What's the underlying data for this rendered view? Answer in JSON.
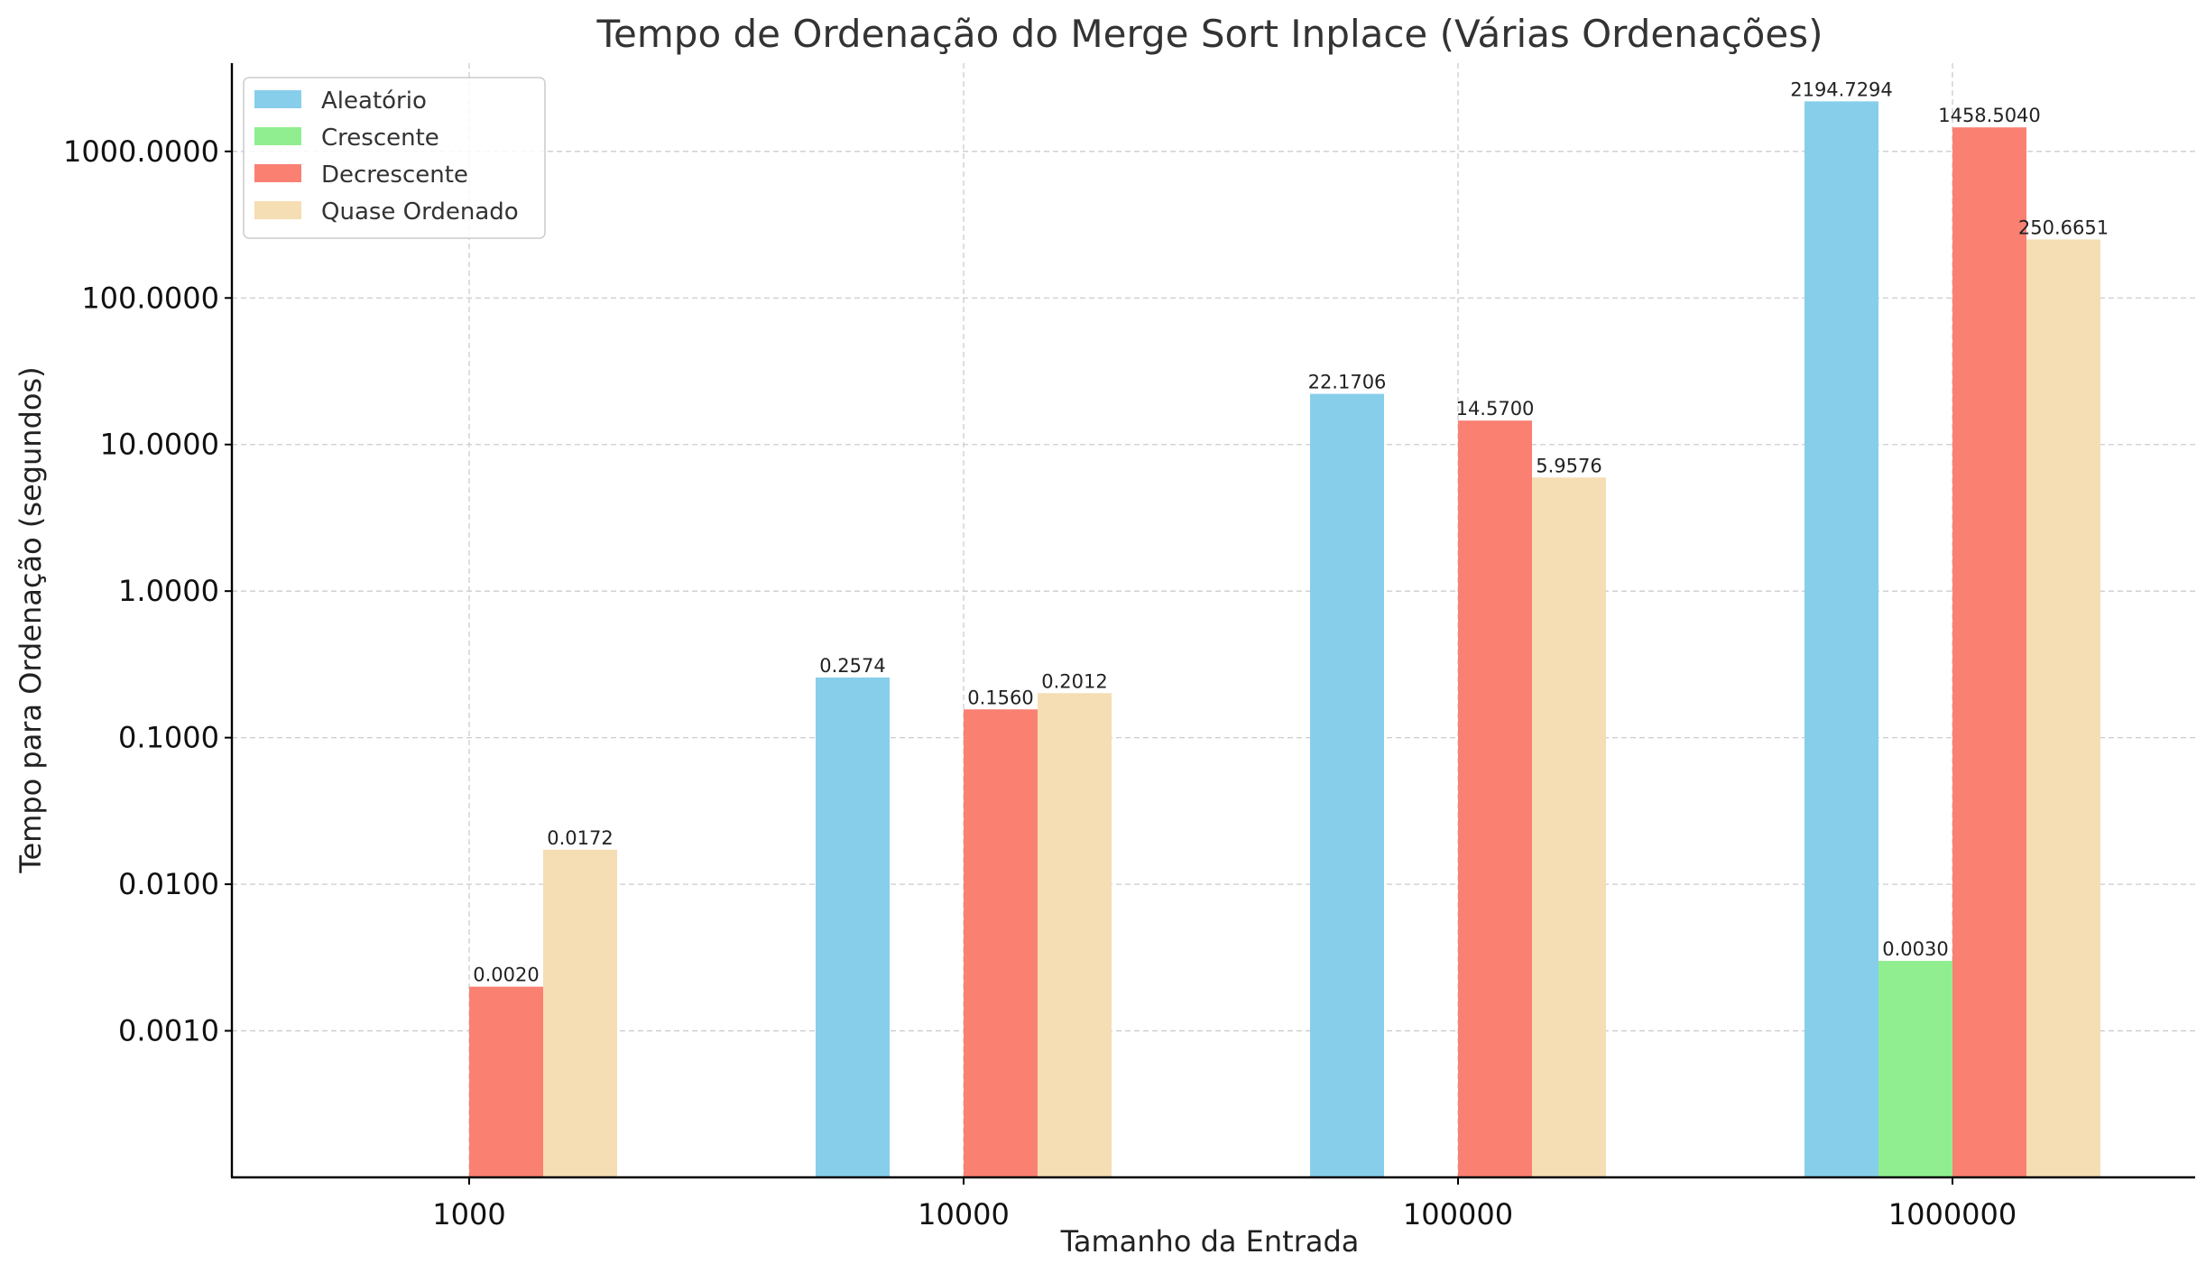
{
  "chart_data": {
    "type": "bar",
    "title": "Tempo de Ordenação do Merge Sort Inplace (Várias Ordenações)",
    "xlabel": "Tamanho da Entrada",
    "ylabel": "Tempo para Ordenação (segundos)",
    "categories": [
      "1000",
      "10000",
      "100000",
      "1000000"
    ],
    "yscale": "log",
    "ylim": [
      0.0001,
      4000
    ],
    "yticks": [
      0.001,
      0.01,
      0.1,
      1,
      10,
      100,
      1000
    ],
    "ytick_labels": [
      "0.0010",
      "0.0100",
      "0.1000",
      "1.0000",
      "10.0000",
      "100.0000",
      "1000.0000"
    ],
    "grid": true,
    "legend_position": "top-left",
    "series": [
      {
        "name": "Aleatório",
        "color": "#87ceeb",
        "values": [
          null,
          0.2574,
          22.1706,
          2194.7294
        ],
        "labels": [
          "",
          "0.2574",
          "22.1706",
          "2194.7294"
        ]
      },
      {
        "name": "Crescente",
        "color": "#90ee90",
        "values": [
          null,
          null,
          null,
          0.003
        ],
        "labels": [
          "",
          "",
          "",
          "0.0030"
        ]
      },
      {
        "name": "Decrescente",
        "color": "#fa8072",
        "values": [
          0.002,
          0.156,
          14.57,
          1458.504
        ],
        "labels": [
          "0.0020",
          "0.1560",
          "14.5700",
          "1458.5040"
        ]
      },
      {
        "name": "Quase Ordenado",
        "color": "#f5deb3",
        "values": [
          0.0172,
          0.2012,
          5.9576,
          250.6651
        ],
        "labels": [
          "0.0172",
          "0.2012",
          "5.9576",
          "250.6651"
        ]
      }
    ]
  }
}
